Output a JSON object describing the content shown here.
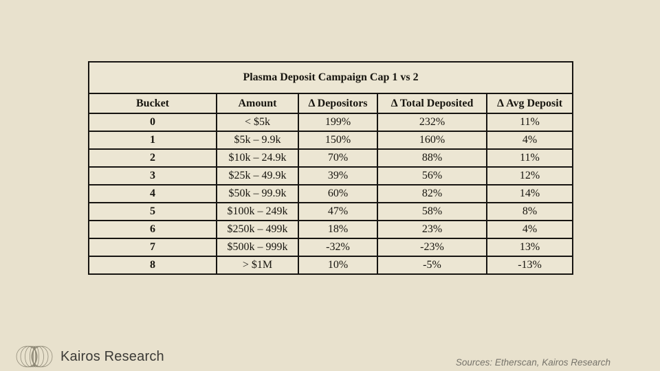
{
  "title": "Plasma Deposit Campaign Cap 1 vs 2",
  "table": {
    "columns": [
      "Bucket",
      "Amount",
      "Δ Depositors",
      "Δ Total Deposited",
      "Δ Avg Deposit"
    ],
    "rows": [
      [
        "0",
        "< $5k",
        "199%",
        "232%",
        "11%"
      ],
      [
        "1",
        "$5k – 9.9k",
        "150%",
        "160%",
        "4%"
      ],
      [
        "2",
        "$10k – 24.9k",
        "70%",
        "88%",
        "11%"
      ],
      [
        "3",
        "$25k – 49.9k",
        "39%",
        "56%",
        "12%"
      ],
      [
        "4",
        "$50k – 99.9k",
        "60%",
        "82%",
        "14%"
      ],
      [
        "5",
        "$100k – 249k",
        "47%",
        "58%",
        "8%"
      ],
      [
        "6",
        "$250k – 499k",
        "18%",
        "23%",
        "4%"
      ],
      [
        "7",
        "$500k – 999k",
        "-32%",
        "-23%",
        "13%"
      ],
      [
        "8",
        "> $1M",
        "10%",
        "-5%",
        "-13%"
      ]
    ]
  },
  "chart_data": {
    "type": "table",
    "title": "Plasma Deposit Campaign Cap 1 vs 2",
    "categories": [
      "< $5k",
      "$5k – 9.9k",
      "$10k – 24.9k",
      "$25k – 49.9k",
      "$50k – 99.9k",
      "$100k – 249k",
      "$250k – 499k",
      "$500k – 999k",
      "> $1M"
    ],
    "bucket_ids": [
      0,
      1,
      2,
      3,
      4,
      5,
      6,
      7,
      8
    ],
    "series": [
      {
        "name": "Δ Depositors",
        "unit": "%",
        "values": [
          199,
          150,
          70,
          39,
          60,
          47,
          18,
          -32,
          10
        ]
      },
      {
        "name": "Δ Total Deposited",
        "unit": "%",
        "values": [
          232,
          160,
          88,
          56,
          82,
          58,
          23,
          -23,
          -5
        ]
      },
      {
        "name": "Δ Avg Deposit",
        "unit": "%",
        "values": [
          11,
          4,
          11,
          12,
          14,
          8,
          4,
          13,
          -13
        ]
      }
    ]
  },
  "footer": {
    "brand": "Kairos Research",
    "sources": "Sources: Etherscan, Kairos Research",
    "logo_icon": "concentric-ellipses-sphere-icon"
  },
  "colors": {
    "background": "#e8e1cd",
    "table_background": "#ece6d3",
    "border": "#161411",
    "text": "#17150f",
    "brand_text": "#3b3a36",
    "sources_text": "#76736a",
    "logo_stroke": "#8d8775"
  }
}
